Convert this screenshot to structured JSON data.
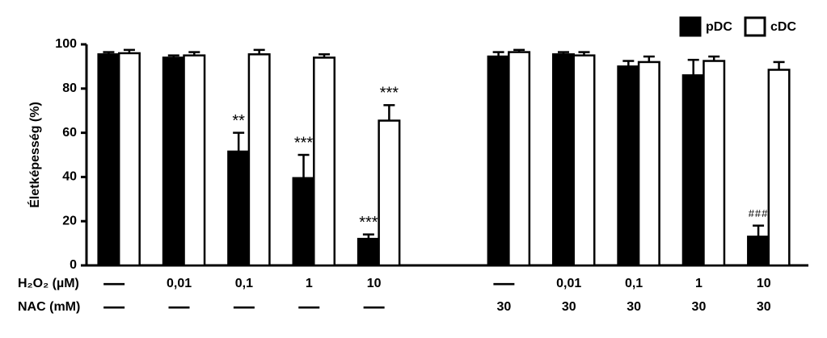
{
  "chart_data": {
    "type": "bar",
    "ylabel": "Életképesség (%)",
    "categories": [
      "—",
      "0,01",
      "0,1",
      "1",
      "10",
      null,
      "—",
      "0,01",
      "0,1",
      "1",
      "10"
    ],
    "x_rows": [
      {
        "label": "H₂O₂ (µM)",
        "values": [
          "—",
          "0,01",
          "0,1",
          "1",
          "10",
          null,
          "—",
          "0,01",
          "0,1",
          "1",
          "10"
        ]
      },
      {
        "label": "NAC (mM)",
        "values": [
          "—",
          "—",
          "—",
          "—",
          "—",
          null,
          "30",
          "30",
          "30",
          "30",
          "30"
        ]
      }
    ],
    "series": [
      {
        "name": "pDC",
        "color": "#000000",
        "values": [
          95.5,
          94,
          51.5,
          39.5,
          12,
          null,
          94.5,
          95.5,
          90,
          86,
          13
        ],
        "errors": [
          1,
          1,
          8.5,
          10.5,
          2,
          null,
          2,
          1,
          2.5,
          7,
          5
        ],
        "annotations": [
          null,
          null,
          "**",
          "***",
          "***",
          null,
          null,
          null,
          null,
          null,
          "###"
        ]
      },
      {
        "name": "cDC",
        "color": "#ffffff",
        "values": [
          96,
          95,
          95.5,
          94,
          65.5,
          null,
          96.5,
          95,
          92,
          92.5,
          88.5
        ],
        "errors": [
          1.5,
          1.5,
          2,
          1.5,
          7,
          null,
          1,
          1.5,
          2.5,
          2,
          3.5
        ],
        "annotations": [
          null,
          null,
          null,
          null,
          "***",
          null,
          null,
          null,
          null,
          null,
          null
        ]
      }
    ],
    "ylim": [
      0,
      100
    ],
    "yticks": [
      0,
      20,
      40,
      60,
      80,
      100
    ],
    "legend": "top-right"
  }
}
